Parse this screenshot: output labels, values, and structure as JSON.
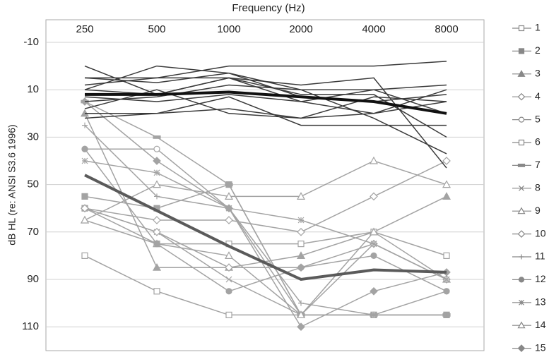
{
  "chart_data": {
    "type": "line",
    "x_label": "Frequency (Hz)",
    "y_label": "dB HL (re: ANSI S3.6 1996)",
    "categories": [
      "250",
      "500",
      "1000",
      "2000",
      "4000",
      "8000"
    ],
    "ylim": [
      120,
      -10
    ],
    "yticks": [
      -10,
      10,
      30,
      50,
      70,
      90,
      110
    ],
    "grid": true,
    "legend": "right",
    "series": [
      {
        "name": "1",
        "color": "#a3a3a3",
        "marker": "square",
        "values": [
          80,
          95,
          105,
          105,
          105,
          105
        ]
      },
      {
        "name": "2",
        "color": "#a3a3a3",
        "marker": "square-filled",
        "values": [
          55,
          60,
          50,
          105,
          105,
          105
        ]
      },
      {
        "name": "3",
        "color": "#a3a3a3",
        "marker": "triangle-filled",
        "values": [
          20,
          85,
          85,
          80,
          70,
          55
        ]
      },
      {
        "name": "4",
        "color": "#a3a3a3",
        "marker": "diamond",
        "values": [
          60,
          65,
          65,
          70,
          55,
          40
        ]
      },
      {
        "name": "5",
        "color": "#a3a3a3",
        "marker": "circle",
        "values": [
          35,
          35,
          60,
          105,
          105,
          95
        ]
      },
      {
        "name": "6",
        "color": "#a3a3a3",
        "marker": "square",
        "values": [
          60,
          75,
          75,
          75,
          70,
          80
        ]
      },
      {
        "name": "7",
        "color": "#a3a3a3",
        "marker": "bar",
        "values": [
          15,
          30,
          50,
          105,
          105,
          105
        ]
      },
      {
        "name": "8",
        "color": "#a3a3a3",
        "marker": "x",
        "values": [
          60,
          70,
          90,
          105,
          75,
          90
        ]
      },
      {
        "name": "9",
        "color": "#a3a3a3",
        "marker": "triangle",
        "values": [
          65,
          75,
          80,
          105,
          70,
          90
        ]
      },
      {
        "name": "10",
        "color": "#a3a3a3",
        "marker": "diamond",
        "values": [
          60,
          70,
          85,
          85,
          75,
          90
        ]
      },
      {
        "name": "11",
        "color": "#a3a3a3",
        "marker": "plus",
        "values": [
          25,
          55,
          60,
          100,
          105,
          105
        ]
      },
      {
        "name": "12",
        "color": "#a3a3a3",
        "marker": "circle-filled",
        "values": [
          35,
          75,
          95,
          85,
          80,
          95
        ]
      },
      {
        "name": "13",
        "color": "#a3a3a3",
        "marker": "star",
        "values": [
          40,
          45,
          60,
          65,
          75,
          90
        ]
      },
      {
        "name": "14",
        "color": "#a3a3a3",
        "marker": "triangle",
        "values": [
          65,
          50,
          55,
          55,
          40,
          50
        ]
      },
      {
        "name": "15",
        "color": "#a3a3a3",
        "marker": "diamond-filled",
        "values": [
          15,
          40,
          60,
          110,
          95,
          87
        ]
      },
      {
        "color": "#3a3a3a",
        "values": [
          5,
          7,
          3,
          10,
          22,
          37
        ]
      },
      {
        "color": "#3a3a3a",
        "values": [
          8,
          5,
          5,
          12,
          12,
          30
        ]
      },
      {
        "color": "#3a3a3a",
        "values": [
          13,
          15,
          12,
          15,
          20,
          15
        ]
      },
      {
        "color": "#3a3a3a",
        "values": [
          20,
          20,
          18,
          22,
          20,
          10
        ]
      },
      {
        "color": "#3a3a3a",
        "values": [
          15,
          13,
          8,
          10,
          10,
          8
        ]
      },
      {
        "color": "#3a3a3a",
        "values": [
          0,
          12,
          5,
          15,
          10,
          20
        ]
      },
      {
        "color": "#3a3a3a",
        "values": [
          10,
          0,
          3,
          13,
          15,
          12
        ]
      },
      {
        "color": "#3a3a3a",
        "values": [
          22,
          20,
          13,
          25,
          25,
          25
        ]
      },
      {
        "color": "#3a3a3a",
        "values": [
          5,
          5,
          0,
          0,
          0,
          -2
        ]
      },
      {
        "color": "#3a3a3a",
        "values": [
          18,
          10,
          20,
          22,
          13,
          15
        ]
      },
      {
        "color": "#3a3a3a",
        "values": [
          10,
          12,
          5,
          8,
          5,
          43
        ]
      },
      {
        "color": "#111111",
        "width": 4,
        "values": [
          12,
          12,
          11,
          13,
          15,
          20
        ]
      },
      {
        "color": "#5a5a5a",
        "width": 4,
        "values": [
          46,
          61,
          76,
          90,
          86,
          87
        ]
      }
    ]
  }
}
